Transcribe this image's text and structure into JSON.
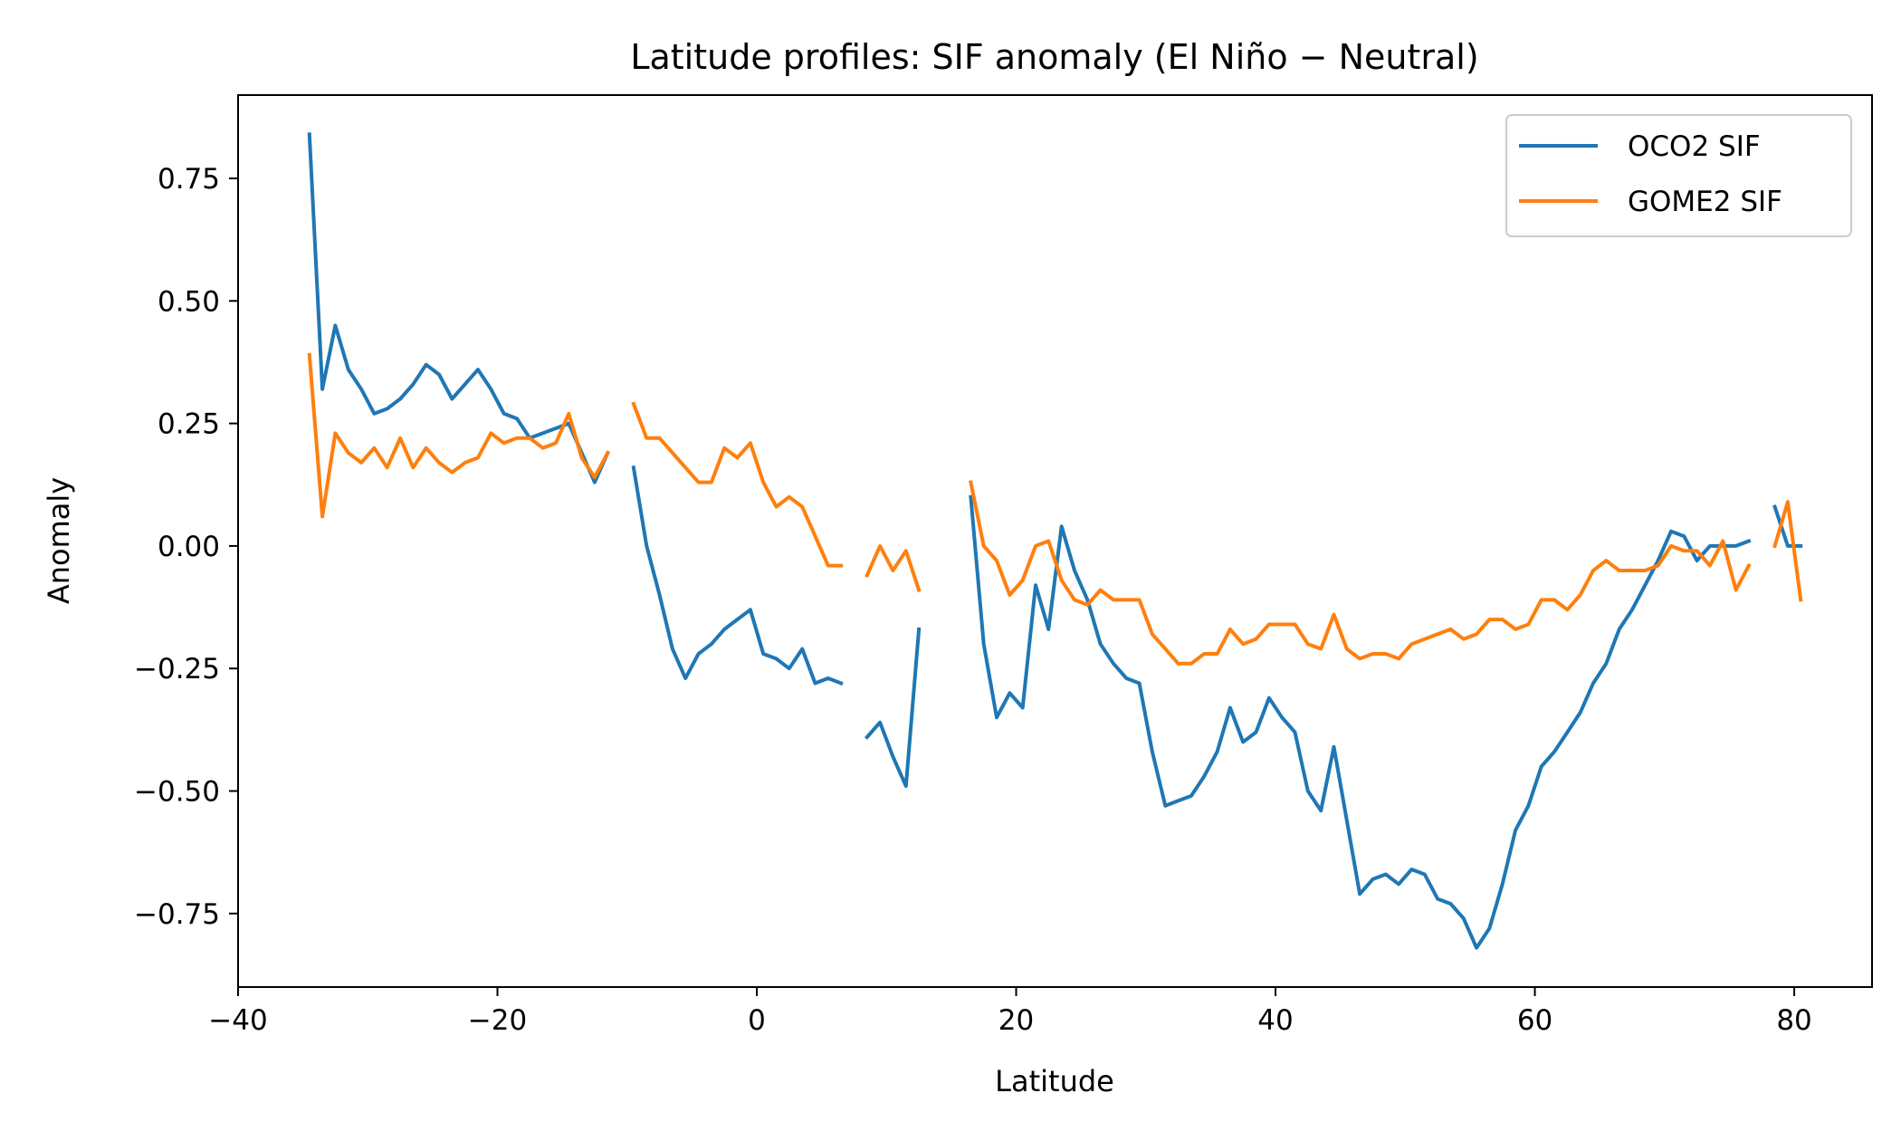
{
  "chart_data": {
    "type": "line",
    "title": "Latitude profiles: SIF anomaly (El Niño − Neutral)",
    "xlabel": "Latitude",
    "ylabel": "Anomaly",
    "xlim": [
      -40,
      86
    ],
    "ylim": [
      -0.9,
      0.92
    ],
    "xticks": [
      -40,
      -20,
      0,
      20,
      40,
      60,
      80
    ],
    "xtick_labels": [
      "−40",
      "−20",
      "0",
      "20",
      "40",
      "60",
      "80"
    ],
    "yticks": [
      -0.75,
      -0.5,
      -0.25,
      0.0,
      0.25,
      0.5,
      0.75
    ],
    "ytick_labels": [
      "−0.75",
      "−0.50",
      "−0.25",
      "0.00",
      "0.25",
      "0.50",
      "0.75"
    ],
    "grid": false,
    "legend_position": "top-right",
    "series": [
      {
        "name": "OCO2 SIF",
        "color": "#1f77b4",
        "x": [
          -34.5,
          -33.5,
          -32.5,
          -31.5,
          -30.5,
          -29.5,
          -28.5,
          -27.5,
          -26.5,
          -25.5,
          -24.5,
          -23.5,
          -22.5,
          -21.5,
          -20.5,
          -19.5,
          -18.5,
          -17.5,
          -16.5,
          -15.5,
          -14.5,
          -13.5,
          -12.5,
          -11.5,
          -10.5,
          -9.5,
          -8.5,
          -7.5,
          -6.5,
          -5.5,
          -4.5,
          -3.5,
          -2.5,
          -1.5,
          -0.5,
          0.5,
          1.5,
          2.5,
          3.5,
          4.5,
          5.5,
          6.5,
          7.5,
          8.5,
          9.5,
          10.5,
          11.5,
          12.5,
          13.5,
          14.5,
          15.5,
          16.5,
          17.5,
          18.5,
          19.5,
          20.5,
          21.5,
          22.5,
          23.5,
          24.5,
          25.5,
          26.5,
          27.5,
          28.5,
          29.5,
          30.5,
          31.5,
          32.5,
          33.5,
          34.5,
          35.5,
          36.5,
          37.5,
          38.5,
          39.5,
          40.5,
          41.5,
          42.5,
          43.5,
          44.5,
          45.5,
          46.5,
          47.5,
          48.5,
          49.5,
          50.5,
          51.5,
          52.5,
          53.5,
          54.5,
          55.5,
          56.5,
          57.5,
          58.5,
          59.5,
          60.5,
          61.5,
          62.5,
          63.5,
          64.5,
          65.5,
          66.5,
          67.5,
          68.5,
          69.5,
          70.5,
          71.5,
          72.5,
          73.5,
          74.5,
          75.5,
          76.5,
          77.5,
          78.5,
          79.5,
          80.5
        ],
        "y": [
          0.84,
          0.32,
          0.45,
          0.36,
          0.32,
          0.27,
          0.28,
          0.3,
          0.33,
          0.37,
          0.35,
          0.3,
          0.33,
          0.36,
          0.32,
          0.27,
          0.26,
          0.22,
          0.23,
          0.24,
          0.25,
          0.19,
          0.13,
          0.19,
          null,
          0.16,
          0.0,
          -0.1,
          -0.21,
          -0.27,
          -0.22,
          -0.2,
          -0.17,
          -0.15,
          -0.13,
          -0.22,
          -0.23,
          -0.25,
          -0.21,
          -0.28,
          -0.27,
          -0.28,
          null,
          -0.39,
          -0.36,
          -0.43,
          -0.49,
          -0.17,
          null,
          null,
          null,
          0.1,
          -0.2,
          -0.35,
          -0.3,
          -0.33,
          -0.08,
          -0.17,
          0.04,
          -0.05,
          -0.11,
          -0.2,
          -0.24,
          -0.27,
          -0.28,
          -0.42,
          -0.53,
          -0.52,
          -0.51,
          -0.47,
          -0.42,
          -0.33,
          -0.4,
          -0.38,
          -0.31,
          -0.35,
          -0.38,
          -0.5,
          -0.54,
          -0.41,
          -0.56,
          -0.71,
          -0.68,
          -0.67,
          -0.69,
          -0.66,
          -0.67,
          -0.72,
          -0.73,
          -0.76,
          -0.82,
          -0.78,
          -0.69,
          -0.58,
          -0.53,
          -0.45,
          -0.42,
          -0.38,
          -0.34,
          -0.28,
          -0.24,
          -0.17,
          -0.13,
          -0.08,
          -0.03,
          0.03,
          0.02,
          -0.03,
          0.0,
          0.0,
          0.0,
          0.01,
          null,
          0.08,
          0.0,
          0.0
        ]
      },
      {
        "name": "GOME2 SIF",
        "color": "#ff7f0e",
        "x": [
          -34.5,
          -33.5,
          -32.5,
          -31.5,
          -30.5,
          -29.5,
          -28.5,
          -27.5,
          -26.5,
          -25.5,
          -24.5,
          -23.5,
          -22.5,
          -21.5,
          -20.5,
          -19.5,
          -18.5,
          -17.5,
          -16.5,
          -15.5,
          -14.5,
          -13.5,
          -12.5,
          -11.5,
          -10.5,
          -9.5,
          -8.5,
          -7.5,
          -6.5,
          -5.5,
          -4.5,
          -3.5,
          -2.5,
          -1.5,
          -0.5,
          0.5,
          1.5,
          2.5,
          3.5,
          4.5,
          5.5,
          6.5,
          7.5,
          8.5,
          9.5,
          10.5,
          11.5,
          12.5,
          13.5,
          14.5,
          15.5,
          16.5,
          17.5,
          18.5,
          19.5,
          20.5,
          21.5,
          22.5,
          23.5,
          24.5,
          25.5,
          26.5,
          27.5,
          28.5,
          29.5,
          30.5,
          31.5,
          32.5,
          33.5,
          34.5,
          35.5,
          36.5,
          37.5,
          38.5,
          39.5,
          40.5,
          41.5,
          42.5,
          43.5,
          44.5,
          45.5,
          46.5,
          47.5,
          48.5,
          49.5,
          50.5,
          51.5,
          52.5,
          53.5,
          54.5,
          55.5,
          56.5,
          57.5,
          58.5,
          59.5,
          60.5,
          61.5,
          62.5,
          63.5,
          64.5,
          65.5,
          66.5,
          67.5,
          68.5,
          69.5,
          70.5,
          71.5,
          72.5,
          73.5,
          74.5,
          75.5,
          76.5,
          77.5,
          78.5,
          79.5,
          80.5
        ],
        "y": [
          0.39,
          0.06,
          0.23,
          0.19,
          0.17,
          0.2,
          0.16,
          0.22,
          0.16,
          0.2,
          0.17,
          0.15,
          0.17,
          0.18,
          0.23,
          0.21,
          0.22,
          0.22,
          0.2,
          0.21,
          0.27,
          0.18,
          0.14,
          0.19,
          null,
          0.29,
          0.22,
          0.22,
          0.19,
          0.16,
          0.13,
          0.13,
          0.2,
          0.18,
          0.21,
          0.13,
          0.08,
          0.1,
          0.08,
          0.02,
          -0.04,
          -0.04,
          null,
          -0.06,
          0.0,
          -0.05,
          -0.01,
          -0.09,
          null,
          null,
          null,
          0.13,
          0.0,
          -0.03,
          -0.1,
          -0.07,
          0.0,
          0.01,
          -0.07,
          -0.11,
          -0.12,
          -0.09,
          -0.11,
          -0.11,
          -0.11,
          -0.18,
          -0.21,
          -0.24,
          -0.24,
          -0.22,
          -0.22,
          -0.17,
          -0.2,
          -0.19,
          -0.16,
          -0.16,
          -0.16,
          -0.2,
          -0.21,
          -0.14,
          -0.21,
          -0.23,
          -0.22,
          -0.22,
          -0.23,
          -0.2,
          -0.19,
          -0.18,
          -0.17,
          -0.19,
          -0.18,
          -0.15,
          -0.15,
          -0.17,
          -0.16,
          -0.11,
          -0.11,
          -0.13,
          -0.1,
          -0.05,
          -0.03,
          -0.05,
          -0.05,
          -0.05,
          -0.04,
          0.0,
          -0.01,
          -0.01,
          -0.04,
          0.01,
          -0.09,
          -0.04,
          null,
          0.0,
          0.09,
          -0.11
        ]
      }
    ]
  }
}
